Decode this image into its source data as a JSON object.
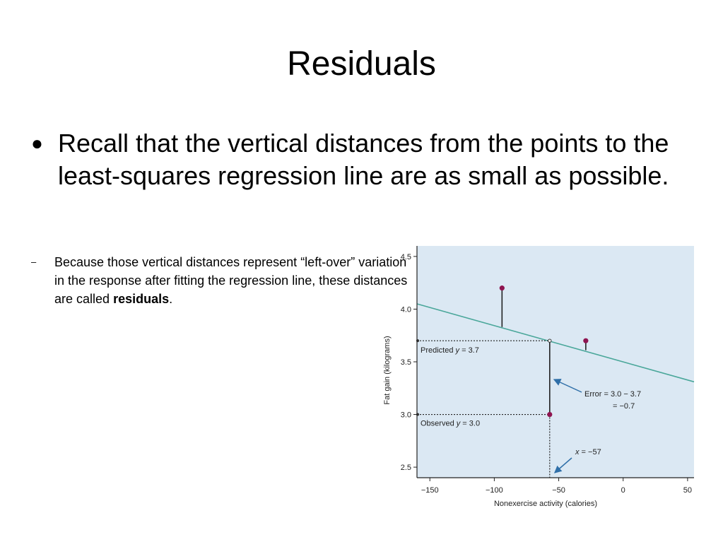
{
  "slide": {
    "title": "Residuals",
    "bullet": "Recall that the vertical distances from the points to the least-squares regression line are as small as possible.",
    "sub_bullet": {
      "text": "Because those vertical distances represent “left-over” variation in the response after fitting the regression line, these distances are called ",
      "bold": "residuals",
      "end": "."
    }
  },
  "chart_data": {
    "type": "scatter",
    "xlabel": "Nonexercise activity (calories)",
    "ylabel": "Fat gain (kilograms)",
    "xlim": [
      -160,
      55
    ],
    "ylim": [
      2.4,
      4.6
    ],
    "x_ticks": [
      -150,
      -100,
      -50,
      0,
      50
    ],
    "y_ticks": [
      2.5,
      3.0,
      3.5,
      4.0,
      4.5
    ],
    "x_tick_labels": [
      "−150",
      "−100",
      "−50",
      "0",
      "50"
    ],
    "y_tick_labels": [
      "2.5",
      "3.0",
      "3.5",
      "4.0",
      "4.5"
    ],
    "regression_line": [
      {
        "x": -160,
        "y": 4.05
      },
      {
        "x": 55,
        "y": 3.31
      }
    ],
    "points": [
      {
        "x": -94,
        "y": 4.2,
        "predicted": 3.83
      },
      {
        "x": -57,
        "y": 3.0,
        "predicted": 3.7
      },
      {
        "x": -29,
        "y": 3.7,
        "predicted": 3.61
      }
    ],
    "annotations": {
      "predicted_label": "Predicted",
      "predicted_var": "y",
      "predicted_value": " = 3.7",
      "observed_label": "Observed",
      "observed_var": "y",
      "observed_value": " = 3.0",
      "error_line1": "Error = 3.0 − 3.7",
      "error_line2": "= −0.7",
      "x_var": "x",
      "x_value": " = −57"
    },
    "colors": {
      "panel": "#dbe8f3",
      "line": "#4aa79a",
      "point": "#8e1450",
      "arrow": "#2f6fa8"
    }
  }
}
